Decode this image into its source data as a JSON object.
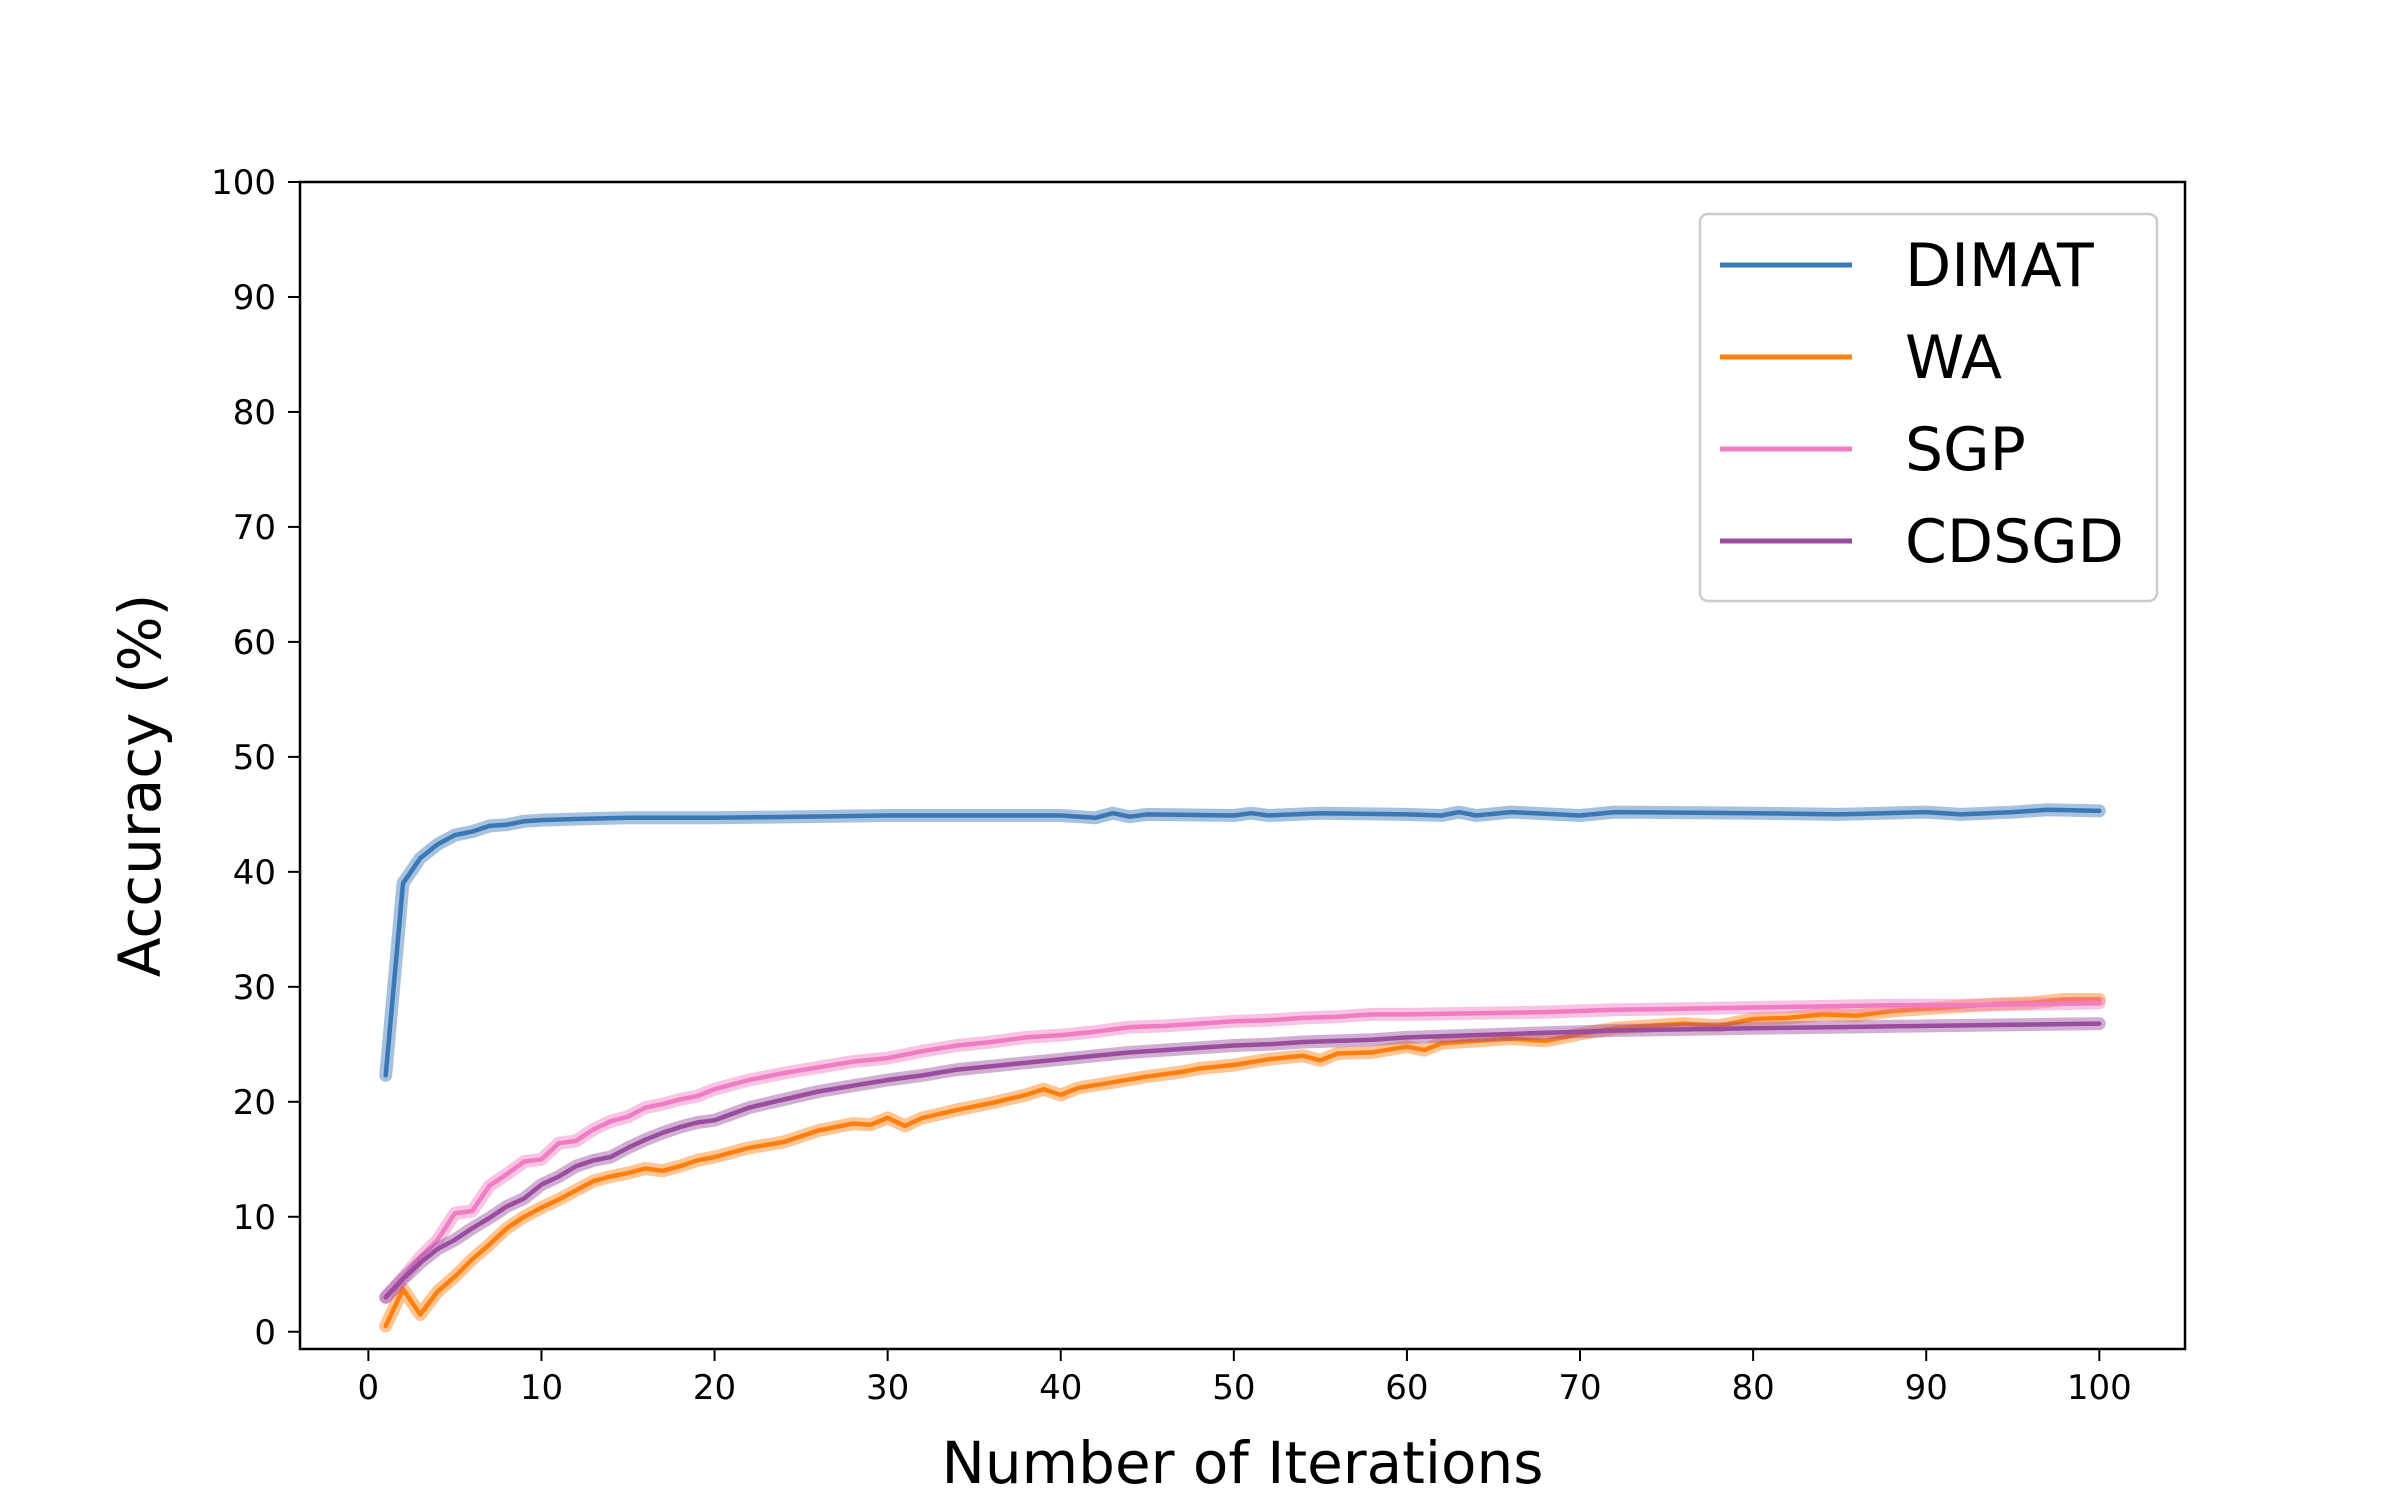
{
  "chart_data": {
    "type": "line",
    "title": "",
    "xlabel": "Number of Iterations",
    "ylabel": "Accuracy (%)",
    "xlim": [
      -3.95,
      104.95
    ],
    "ylim": [
      -1.5,
      100
    ],
    "xticks": [
      0,
      10,
      20,
      30,
      40,
      50,
      60,
      70,
      80,
      90,
      100
    ],
    "yticks": [
      0,
      10,
      20,
      30,
      40,
      50,
      60,
      70,
      80,
      90,
      100
    ],
    "legend_position": "top-right",
    "grid": false,
    "series": [
      {
        "name": "DIMAT",
        "color": "#3a78b5",
        "points": [
          [
            1,
            22.3
          ],
          [
            2,
            39.0
          ],
          [
            3,
            41.2
          ],
          [
            4,
            42.4
          ],
          [
            5,
            43.2
          ],
          [
            6,
            43.5
          ],
          [
            7,
            44.0
          ],
          [
            8,
            44.1
          ],
          [
            9,
            44.4
          ],
          [
            10,
            44.5
          ],
          [
            12,
            44.6
          ],
          [
            15,
            44.7
          ],
          [
            20,
            44.7
          ],
          [
            25,
            44.8
          ],
          [
            30,
            44.9
          ],
          [
            40,
            44.9
          ],
          [
            42,
            44.7
          ],
          [
            43,
            45.1
          ],
          [
            44,
            44.8
          ],
          [
            45,
            45.0
          ],
          [
            50,
            44.9
          ],
          [
            51,
            45.1
          ],
          [
            52,
            44.9
          ],
          [
            55,
            45.1
          ],
          [
            60,
            45.0
          ],
          [
            62,
            44.9
          ],
          [
            63,
            45.2
          ],
          [
            64,
            44.9
          ],
          [
            66,
            45.2
          ],
          [
            70,
            44.9
          ],
          [
            72,
            45.2
          ],
          [
            80,
            45.1
          ],
          [
            85,
            45.0
          ],
          [
            90,
            45.2
          ],
          [
            92,
            45.0
          ],
          [
            95,
            45.2
          ],
          [
            97,
            45.4
          ],
          [
            100,
            45.3
          ]
        ]
      },
      {
        "name": "WA",
        "color": "#ff7f0e",
        "points": [
          [
            1,
            0.5
          ],
          [
            2,
            3.7
          ],
          [
            3,
            1.5
          ],
          [
            4,
            3.5
          ],
          [
            5,
            4.8
          ],
          [
            6,
            6.3
          ],
          [
            7,
            7.6
          ],
          [
            8,
            9.0
          ],
          [
            9,
            10.0
          ],
          [
            10,
            10.8
          ],
          [
            11,
            11.5
          ],
          [
            12,
            12.3
          ],
          [
            13,
            13.1
          ],
          [
            14,
            13.5
          ],
          [
            15,
            13.8
          ],
          [
            16,
            14.2
          ],
          [
            17,
            14.0
          ],
          [
            18,
            14.4
          ],
          [
            19,
            14.9
          ],
          [
            20,
            15.2
          ],
          [
            22,
            16.0
          ],
          [
            24,
            16.5
          ],
          [
            26,
            17.5
          ],
          [
            28,
            18.1
          ],
          [
            29,
            18.0
          ],
          [
            30,
            18.6
          ],
          [
            31,
            17.9
          ],
          [
            32,
            18.6
          ],
          [
            34,
            19.3
          ],
          [
            36,
            19.9
          ],
          [
            38,
            20.6
          ],
          [
            39,
            21.1
          ],
          [
            40,
            20.6
          ],
          [
            41,
            21.2
          ],
          [
            43,
            21.7
          ],
          [
            45,
            22.2
          ],
          [
            47,
            22.6
          ],
          [
            48,
            22.9
          ],
          [
            50,
            23.2
          ],
          [
            52,
            23.7
          ],
          [
            54,
            24.0
          ],
          [
            55,
            23.6
          ],
          [
            56,
            24.2
          ],
          [
            58,
            24.3
          ],
          [
            60,
            24.8
          ],
          [
            61,
            24.5
          ],
          [
            62,
            25.1
          ],
          [
            64,
            25.3
          ],
          [
            66,
            25.5
          ],
          [
            68,
            25.3
          ],
          [
            70,
            25.9
          ],
          [
            72,
            26.4
          ],
          [
            74,
            26.6
          ],
          [
            76,
            26.8
          ],
          [
            78,
            26.6
          ],
          [
            80,
            27.2
          ],
          [
            82,
            27.3
          ],
          [
            84,
            27.6
          ],
          [
            86,
            27.5
          ],
          [
            88,
            27.9
          ],
          [
            90,
            28.1
          ],
          [
            92,
            28.3
          ],
          [
            94,
            28.5
          ],
          [
            96,
            28.6
          ],
          [
            98,
            28.9
          ],
          [
            100,
            28.9
          ]
        ]
      },
      {
        "name": "SGP",
        "color": "#f07cc4",
        "points": [
          [
            1,
            3.0
          ],
          [
            2,
            4.7
          ],
          [
            3,
            6.5
          ],
          [
            4,
            8.0
          ],
          [
            5,
            10.3
          ],
          [
            6,
            10.5
          ],
          [
            7,
            12.7
          ],
          [
            8,
            13.7
          ],
          [
            9,
            14.8
          ],
          [
            10,
            15.0
          ],
          [
            11,
            16.4
          ],
          [
            12,
            16.6
          ],
          [
            13,
            17.6
          ],
          [
            14,
            18.3
          ],
          [
            15,
            18.7
          ],
          [
            16,
            19.5
          ],
          [
            17,
            19.8
          ],
          [
            18,
            20.2
          ],
          [
            19,
            20.5
          ],
          [
            20,
            21.1
          ],
          [
            22,
            21.9
          ],
          [
            24,
            22.5
          ],
          [
            26,
            23.0
          ],
          [
            28,
            23.5
          ],
          [
            30,
            23.8
          ],
          [
            32,
            24.4
          ],
          [
            34,
            24.9
          ],
          [
            36,
            25.2
          ],
          [
            38,
            25.6
          ],
          [
            40,
            25.8
          ],
          [
            42,
            26.1
          ],
          [
            44,
            26.5
          ],
          [
            46,
            26.6
          ],
          [
            48,
            26.8
          ],
          [
            50,
            27.0
          ],
          [
            52,
            27.1
          ],
          [
            54,
            27.3
          ],
          [
            56,
            27.4
          ],
          [
            58,
            27.6
          ],
          [
            60,
            27.6
          ],
          [
            64,
            27.7
          ],
          [
            68,
            27.8
          ],
          [
            72,
            28.0
          ],
          [
            76,
            28.1
          ],
          [
            80,
            28.2
          ],
          [
            84,
            28.3
          ],
          [
            88,
            28.4
          ],
          [
            92,
            28.4
          ],
          [
            96,
            28.5
          ],
          [
            100,
            28.6
          ]
        ]
      },
      {
        "name": "CDSGD",
        "color": "#9a4d9e",
        "points": [
          [
            1,
            3.0
          ],
          [
            2,
            4.6
          ],
          [
            3,
            6.0
          ],
          [
            4,
            7.2
          ],
          [
            5,
            8.0
          ],
          [
            6,
            9.0
          ],
          [
            7,
            9.9
          ],
          [
            8,
            10.9
          ],
          [
            9,
            11.6
          ],
          [
            10,
            12.8
          ],
          [
            11,
            13.5
          ],
          [
            12,
            14.4
          ],
          [
            13,
            14.9
          ],
          [
            14,
            15.2
          ],
          [
            15,
            16.0
          ],
          [
            16,
            16.7
          ],
          [
            17,
            17.3
          ],
          [
            18,
            17.8
          ],
          [
            19,
            18.2
          ],
          [
            20,
            18.4
          ],
          [
            22,
            19.5
          ],
          [
            24,
            20.2
          ],
          [
            26,
            20.9
          ],
          [
            28,
            21.4
          ],
          [
            30,
            21.9
          ],
          [
            32,
            22.3
          ],
          [
            34,
            22.8
          ],
          [
            36,
            23.1
          ],
          [
            38,
            23.4
          ],
          [
            40,
            23.7
          ],
          [
            42,
            24.0
          ],
          [
            44,
            24.3
          ],
          [
            46,
            24.5
          ],
          [
            48,
            24.7
          ],
          [
            50,
            24.9
          ],
          [
            52,
            25.0
          ],
          [
            54,
            25.2
          ],
          [
            56,
            25.3
          ],
          [
            58,
            25.4
          ],
          [
            60,
            25.6
          ],
          [
            62,
            25.7
          ],
          [
            64,
            25.8
          ],
          [
            66,
            25.9
          ],
          [
            68,
            26.0
          ],
          [
            70,
            26.1
          ],
          [
            72,
            26.2
          ],
          [
            76,
            26.3
          ],
          [
            80,
            26.4
          ],
          [
            85,
            26.5
          ],
          [
            90,
            26.6
          ],
          [
            95,
            26.7
          ],
          [
            100,
            26.8
          ]
        ]
      }
    ]
  }
}
